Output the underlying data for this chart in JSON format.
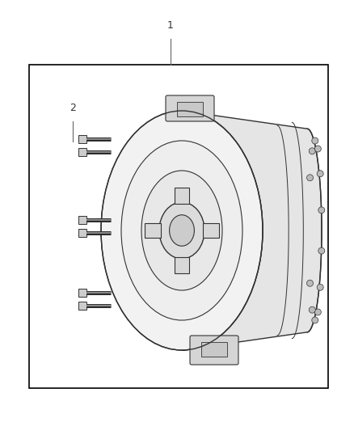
{
  "bg_color": "#ffffff",
  "border_color": "#000000",
  "border_lw": 1.2,
  "label1_text": "1",
  "label2_text": "2",
  "tc_edge_color": "#333333",
  "label_fontsize": 9,
  "line_color": "#666666",
  "fig_w": 4.38,
  "fig_h": 5.33,
  "dpi": 100
}
